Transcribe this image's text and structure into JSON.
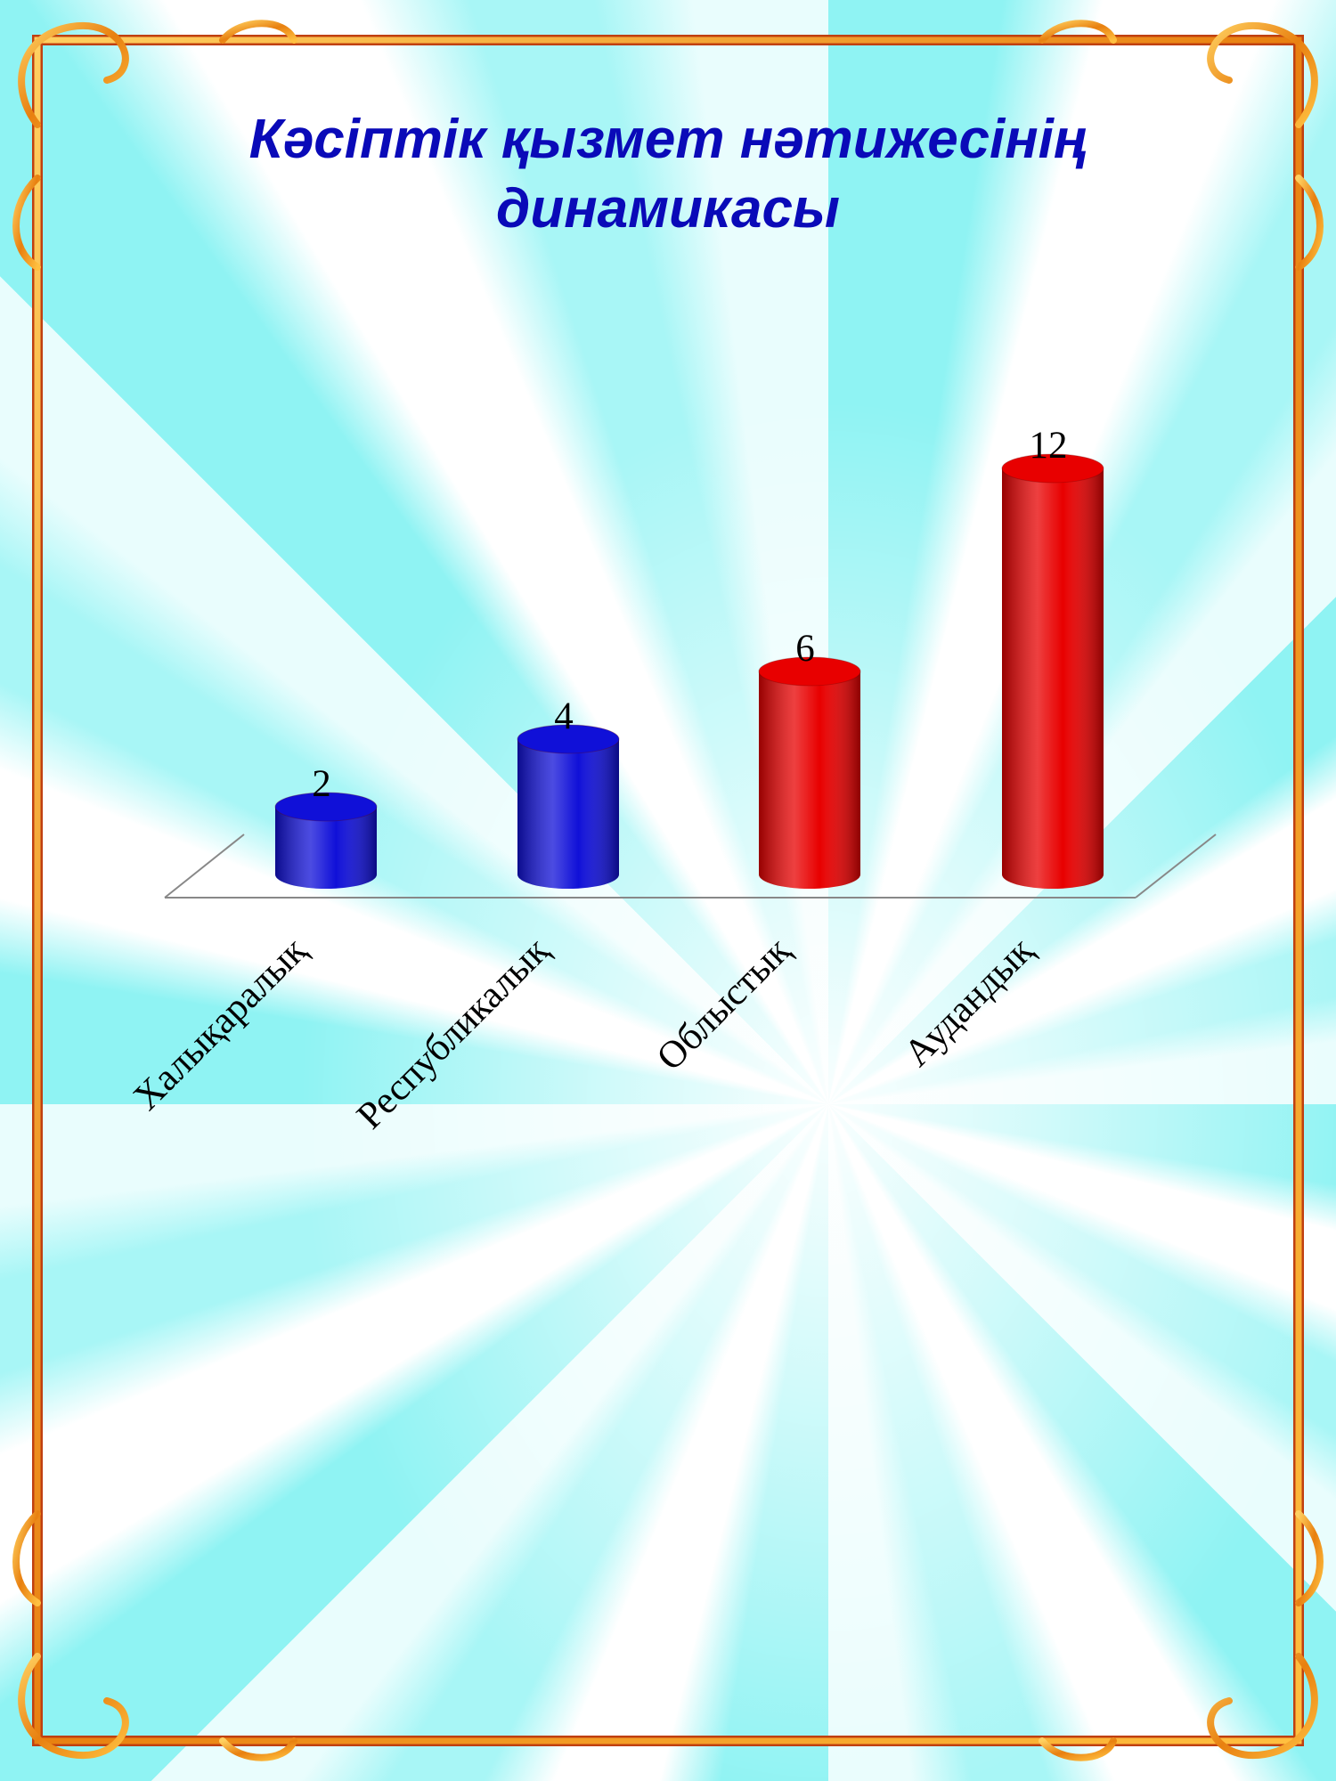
{
  "title_lines": [
    "Кәсіптік қызмет нәтижесінің",
    "динамикасы"
  ],
  "colors": {
    "title": "#0a0ab8",
    "blue_bar": "#1010d8",
    "red_bar": "#e80000",
    "frame": "#f0a020"
  },
  "chart_data": {
    "type": "bar",
    "style": "3d-cylinder",
    "title": "Кәсіптік қызмет нәтижесінің динамикасы",
    "categories": [
      "Халықаралық",
      "Республикалық",
      "Облыстық",
      "Аудандық"
    ],
    "values": [
      2,
      4,
      6,
      12
    ],
    "bar_colors": [
      "#1010d8",
      "#1010d8",
      "#e80000",
      "#e80000"
    ],
    "data_labels": [
      "2",
      "4",
      "6",
      "12"
    ],
    "ylim": [
      0,
      12
    ],
    "grid": false,
    "legend": "none"
  }
}
